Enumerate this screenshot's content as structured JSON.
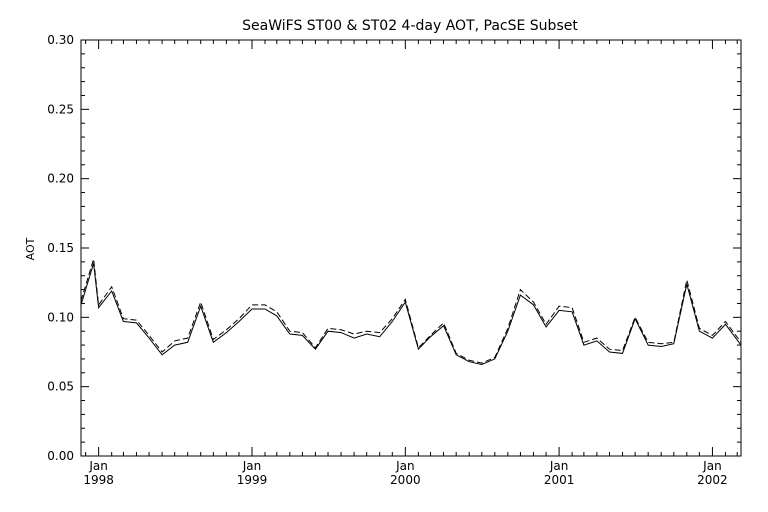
{
  "chart_data": {
    "type": "line",
    "title": "SeaWiFS ST00 & ST02 4-day AOT, PacSE Subset",
    "xlabel": "",
    "ylabel": "AOT",
    "ylim": [
      0.0,
      0.3
    ],
    "xlim": [
      "1997-11-20",
      "2002-03-10"
    ],
    "y_ticks": [
      "0.00",
      "0.05",
      "0.10",
      "0.15",
      "0.20",
      "0.25",
      "0.30"
    ],
    "x_ticks": [
      {
        "month": "Jan",
        "year": "1998",
        "date": "1998-01-01"
      },
      {
        "month": "Jan",
        "year": "1999",
        "date": "1999-01-01"
      },
      {
        "month": "Jan",
        "year": "2000",
        "date": "2000-01-01"
      },
      {
        "month": "Jan",
        "year": "2001",
        "date": "2001-01-01"
      },
      {
        "month": "Jan",
        "year": "2002",
        "date": "2002-01-01"
      }
    ],
    "grid": false,
    "series": [
      {
        "style": "solid",
        "x": [
          "1997-11-20",
          "1997-12-20",
          "1998-01-01",
          "1998-02-01",
          "1998-03-01",
          "1998-04-01",
          "1998-05-01",
          "1998-06-01",
          "1998-07-01",
          "1998-08-01",
          "1998-09-01",
          "1998-10-01",
          "1998-11-01",
          "1998-12-01",
          "1999-01-01",
          "1999-02-01",
          "1999-03-01",
          "1999-04-01",
          "1999-05-01",
          "1999-06-01",
          "1999-07-01",
          "1999-08-01",
          "1999-09-01",
          "1999-10-01",
          "1999-11-01",
          "1999-12-01",
          "2000-01-01",
          "2000-02-01",
          "2000-03-01",
          "2000-04-01",
          "2000-05-01",
          "2000-06-01",
          "2000-07-01",
          "2000-08-01",
          "2000-09-01",
          "2000-10-01",
          "2000-11-01",
          "2000-12-01",
          "2001-01-01",
          "2001-02-01",
          "2001-03-01",
          "2001-04-01",
          "2001-05-01",
          "2001-06-01",
          "2001-07-01",
          "2001-08-01",
          "2001-09-01",
          "2001-10-01",
          "2001-11-01",
          "2001-12-01",
          "2002-01-01",
          "2002-02-01",
          "2002-03-10"
        ],
        "values": [
          0.109,
          0.139,
          0.107,
          0.119,
          0.097,
          0.096,
          0.085,
          0.073,
          0.08,
          0.082,
          0.108,
          0.082,
          0.089,
          0.097,
          0.106,
          0.106,
          0.101,
          0.088,
          0.087,
          0.077,
          0.09,
          0.089,
          0.085,
          0.088,
          0.086,
          0.097,
          0.111,
          0.077,
          0.086,
          0.094,
          0.073,
          0.068,
          0.066,
          0.07,
          0.09,
          0.116,
          0.109,
          0.093,
          0.105,
          0.104,
          0.08,
          0.083,
          0.075,
          0.074,
          0.099,
          0.08,
          0.079,
          0.081,
          0.124,
          0.09,
          0.085,
          0.095,
          0.08
        ]
      },
      {
        "style": "dashed",
        "x": [
          "1997-11-20",
          "1997-12-20",
          "1998-01-01",
          "1998-02-01",
          "1998-03-01",
          "1998-04-01",
          "1998-05-01",
          "1998-06-01",
          "1998-07-01",
          "1998-08-01",
          "1998-09-01",
          "1998-10-01",
          "1998-11-01",
          "1998-12-01",
          "1999-01-01",
          "1999-02-01",
          "1999-03-01",
          "1999-04-01",
          "1999-05-01",
          "1999-06-01",
          "1999-07-01",
          "1999-08-01",
          "1999-09-01",
          "1999-10-01",
          "1999-11-01",
          "1999-12-01",
          "2000-01-01",
          "2000-02-01",
          "2000-03-01",
          "2000-04-01",
          "2000-05-01",
          "2000-06-01",
          "2000-07-01",
          "2000-08-01",
          "2000-09-01",
          "2000-10-01",
          "2000-11-01",
          "2000-12-01",
          "2001-01-01",
          "2001-02-01",
          "2001-03-01",
          "2001-04-01",
          "2001-05-01",
          "2001-06-01",
          "2001-07-01",
          "2001-08-01",
          "2001-09-01",
          "2001-10-01",
          "2001-11-01",
          "2001-12-01",
          "2002-01-01",
          "2002-02-01",
          "2002-03-10"
        ],
        "values": [
          0.112,
          0.142,
          0.109,
          0.122,
          0.099,
          0.098,
          0.087,
          0.075,
          0.083,
          0.085,
          0.111,
          0.084,
          0.091,
          0.099,
          0.109,
          0.109,
          0.104,
          0.09,
          0.089,
          0.078,
          0.092,
          0.091,
          0.088,
          0.09,
          0.089,
          0.099,
          0.113,
          0.078,
          0.087,
          0.096,
          0.074,
          0.069,
          0.067,
          0.071,
          0.092,
          0.12,
          0.111,
          0.095,
          0.108,
          0.107,
          0.082,
          0.085,
          0.077,
          0.076,
          0.1,
          0.082,
          0.081,
          0.082,
          0.127,
          0.092,
          0.087,
          0.097,
          0.082
        ]
      }
    ]
  }
}
